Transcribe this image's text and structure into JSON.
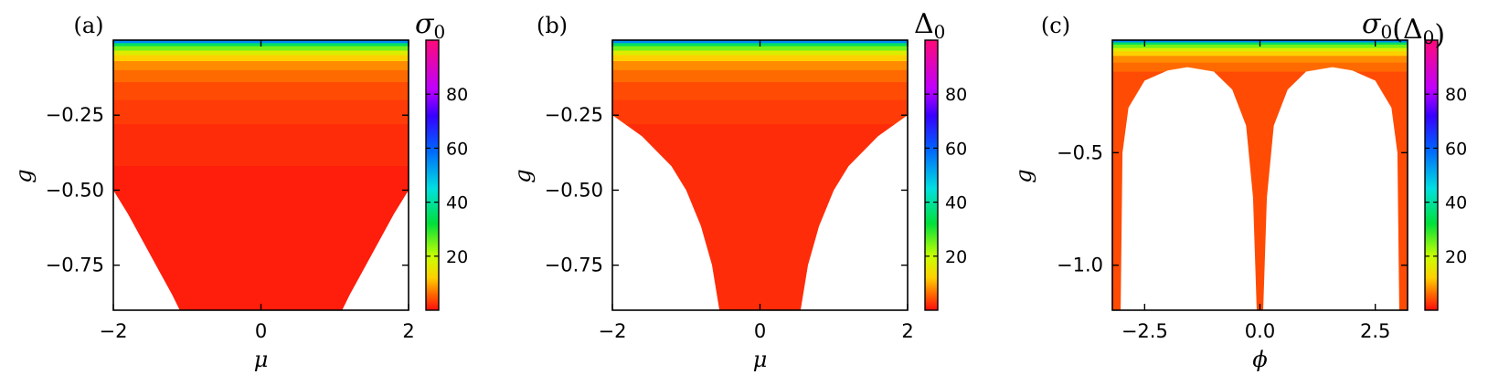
{
  "chart_data": [
    {
      "type": "heatmap",
      "panel_label": "(a)",
      "xlabel": "μ",
      "ylabel": "g",
      "xlim": [
        -2,
        2
      ],
      "ylim": [
        -0.9,
        0.0
      ],
      "xticks": [
        -2,
        0,
        2
      ],
      "xtick_labels": [
        "−2",
        "0",
        "2"
      ],
      "yticks": [
        -0.25,
        -0.5,
        -0.75
      ],
      "ytick_labels": [
        "−0.25",
        "−0.50",
        "−0.75"
      ],
      "colorbar": {
        "label": "σ0",
        "min": 0,
        "max": 100,
        "ticks": [
          20,
          40,
          60,
          80
        ],
        "tick_labels": [
          "20",
          "40",
          "60",
          "80"
        ]
      },
      "contour_bands": [
        {
          "g": 0.0,
          "value": 55
        },
        {
          "g": -0.01,
          "value": 35
        },
        {
          "g": -0.02,
          "value": 25
        },
        {
          "g": -0.035,
          "value": 17
        },
        {
          "g": -0.05,
          "value": 12
        },
        {
          "g": -0.07,
          "value": 8
        },
        {
          "g": -0.1,
          "value": 6
        },
        {
          "g": -0.14,
          "value": 4
        },
        {
          "g": -0.2,
          "value": 3
        },
        {
          "g": -0.28,
          "value": 2
        },
        {
          "g": -0.42,
          "value": 1
        }
      ],
      "zero_region_boundary": [
        {
          "mu": -2.0,
          "g": -0.5
        },
        {
          "mu": -1.8,
          "g": -0.58
        },
        {
          "mu": -1.6,
          "g": -0.67
        },
        {
          "mu": -1.4,
          "g": -0.76
        },
        {
          "mu": -1.2,
          "g": -0.85
        },
        {
          "mu": -1.1,
          "g": -0.9
        },
        {
          "mu": 1.1,
          "g": -0.9
        },
        {
          "mu": 1.2,
          "g": -0.85
        },
        {
          "mu": 1.4,
          "g": -0.76
        },
        {
          "mu": 1.6,
          "g": -0.67
        },
        {
          "mu": 1.8,
          "g": -0.58
        },
        {
          "mu": 2.0,
          "g": -0.5
        }
      ]
    },
    {
      "type": "heatmap",
      "panel_label": "(b)",
      "xlabel": "μ",
      "ylabel": "g",
      "xlim": [
        -2,
        2
      ],
      "ylim": [
        -0.9,
        0.0
      ],
      "xticks": [
        -2,
        0,
        2
      ],
      "xtick_labels": [
        "−2",
        "0",
        "2"
      ],
      "yticks": [
        -0.25,
        -0.5,
        -0.75
      ],
      "ytick_labels": [
        "−0.25",
        "−0.50",
        "−0.75"
      ],
      "colorbar": {
        "label": "Δ0",
        "min": 0,
        "max": 100,
        "ticks": [
          20,
          40,
          60,
          80
        ],
        "tick_labels": [
          "20",
          "40",
          "60",
          "80"
        ]
      },
      "contour_bands": [
        {
          "g": 0.0,
          "value": 55
        },
        {
          "g": -0.01,
          "value": 35
        },
        {
          "g": -0.02,
          "value": 25
        },
        {
          "g": -0.035,
          "value": 17
        },
        {
          "g": -0.05,
          "value": 12
        },
        {
          "g": -0.07,
          "value": 8
        },
        {
          "g": -0.1,
          "value": 6
        },
        {
          "g": -0.14,
          "value": 4
        },
        {
          "g": -0.2,
          "value": 3
        },
        {
          "g": -0.28,
          "value": 2
        }
      ],
      "zero_region_boundary": [
        {
          "mu": -2.0,
          "g": -0.25
        },
        {
          "mu": -1.6,
          "g": -0.32
        },
        {
          "mu": -1.2,
          "g": -0.42
        },
        {
          "mu": -1.0,
          "g": -0.5
        },
        {
          "mu": -0.8,
          "g": -0.62
        },
        {
          "mu": -0.65,
          "g": -0.75
        },
        {
          "mu": -0.55,
          "g": -0.9
        },
        {
          "mu": 0.55,
          "g": -0.9
        },
        {
          "mu": 0.65,
          "g": -0.75
        },
        {
          "mu": 0.8,
          "g": -0.62
        },
        {
          "mu": 1.0,
          "g": -0.5
        },
        {
          "mu": 1.2,
          "g": -0.42
        },
        {
          "mu": 1.6,
          "g": -0.32
        },
        {
          "mu": 2.0,
          "g": -0.25
        }
      ]
    },
    {
      "type": "heatmap",
      "panel_label": "(c)",
      "xlabel": "ϕ",
      "ylabel": "g",
      "xlim": [
        -3.2,
        3.2
      ],
      "ylim": [
        -1.2,
        0.0
      ],
      "xticks": [
        -2.5,
        0.0,
        2.5
      ],
      "xtick_labels": [
        "−2.5",
        "0.0",
        "2.5"
      ],
      "yticks": [
        -0.5,
        -1.0
      ],
      "ytick_labels": [
        "−0.5",
        "−1.0"
      ],
      "colorbar": {
        "label": "σ0(Δ0)",
        "min": 0,
        "max": 100,
        "ticks": [
          20,
          40,
          60,
          80
        ],
        "tick_labels": [
          "20",
          "40",
          "60",
          "80"
        ]
      },
      "contour_bands": [
        {
          "g": 0.0,
          "value": 55
        },
        {
          "g": -0.01,
          "value": 35
        },
        {
          "g": -0.02,
          "value": 25
        },
        {
          "g": -0.035,
          "value": 17
        },
        {
          "g": -0.05,
          "value": 12
        },
        {
          "g": -0.07,
          "value": 8
        },
        {
          "g": -0.1,
          "value": 6
        },
        {
          "g": -0.14,
          "value": 4
        }
      ],
      "zero_region_boundary_left": [
        {
          "phi": -3.02,
          "g": -1.2
        },
        {
          "phi": -2.98,
          "g": -0.5
        },
        {
          "phi": -2.85,
          "g": -0.3
        },
        {
          "phi": -2.5,
          "g": -0.18
        },
        {
          "phi": -2.0,
          "g": -0.135
        },
        {
          "phi": -1.57,
          "g": -0.12
        },
        {
          "phi": -1.0,
          "g": -0.14
        },
        {
          "phi": -0.6,
          "g": -0.22
        },
        {
          "phi": -0.3,
          "g": -0.38
        },
        {
          "phi": -0.15,
          "g": -0.7
        },
        {
          "phi": -0.07,
          "g": -1.2
        }
      ],
      "zero_region_boundary_right": [
        {
          "phi": 0.07,
          "g": -1.2
        },
        {
          "phi": 0.15,
          "g": -0.7
        },
        {
          "phi": 0.3,
          "g": -0.38
        },
        {
          "phi": 0.6,
          "g": -0.22
        },
        {
          "phi": 1.0,
          "g": -0.14
        },
        {
          "phi": 1.57,
          "g": -0.12
        },
        {
          "phi": 2.0,
          "g": -0.135
        },
        {
          "phi": 2.5,
          "g": -0.18
        },
        {
          "phi": 2.85,
          "g": -0.3
        },
        {
          "phi": 2.98,
          "g": -0.5
        },
        {
          "phi": 3.02,
          "g": -1.2
        }
      ]
    }
  ]
}
